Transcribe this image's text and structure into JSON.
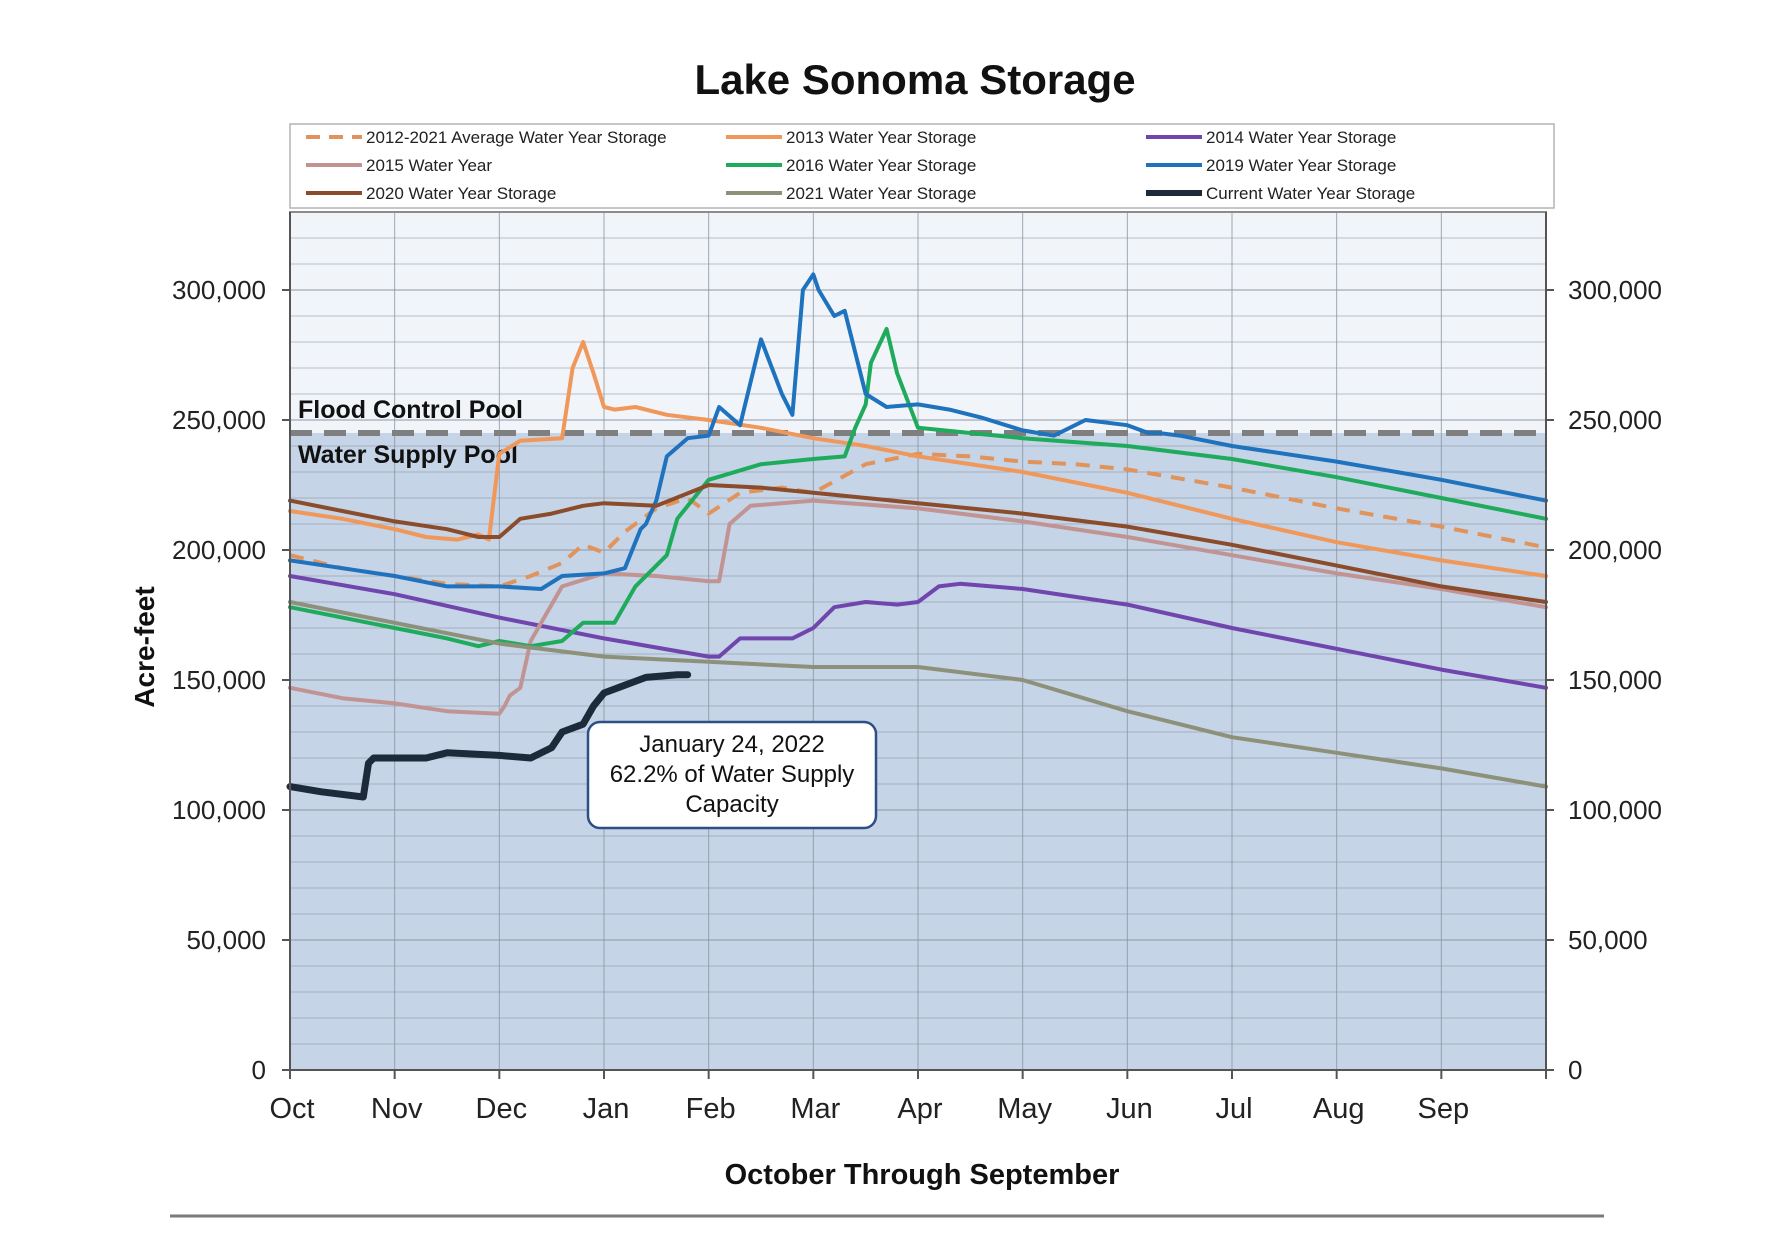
{
  "chart_data": {
    "type": "line",
    "title": "Lake Sonoma Storage",
    "xlabel": "October Through September",
    "ylabel": "Acre-feet",
    "x_unit": "month index (0 = start of Oct, 12 = end of Sep)",
    "xlim": [
      0,
      12
    ],
    "ylim": [
      0,
      330000
    ],
    "categories": [
      "Oct",
      "Nov",
      "Dec",
      "Jan",
      "Feb",
      "Mar",
      "Apr",
      "May",
      "Jun",
      "Jul",
      "Aug",
      "Sep"
    ],
    "y_ticks": [
      {
        "value": 0,
        "label": "0"
      },
      {
        "value": 50000,
        "label": "50,000"
      },
      {
        "value": 100000,
        "label": "100,000"
      },
      {
        "value": 150000,
        "label": "150,000"
      },
      {
        "value": 200000,
        "label": "200,000"
      },
      {
        "value": 250000,
        "label": "250,000"
      },
      {
        "value": 300000,
        "label": "300,000"
      }
    ],
    "grid": true,
    "legend_position": "top",
    "pool_boundary": 245000,
    "pool_labels": {
      "flood": "Flood Control Pool",
      "water": "Water Supply Pool"
    },
    "colors": {
      "flood_bg": "#f1f5f9",
      "water_bg": "#c5d4e6",
      "grid": "#8a93a3",
      "boundary": "#7f7f7f"
    },
    "series": [
      {
        "name": "2012-2021 Average Water Year Storage",
        "color": "#e0935a",
        "dashed": true,
        "width": 4,
        "x": [
          0,
          0.5,
          1,
          1.5,
          2,
          2.3,
          2.6,
          2.8,
          3.0,
          3.2,
          3.5,
          3.8,
          4.0,
          4.3,
          4.7,
          5.0,
          5.5,
          6.0,
          6.5,
          7.0,
          7.5,
          8.0,
          9.0,
          10.0,
          11.0,
          12.0
        ],
        "y": [
          198000,
          193000,
          190000,
          187000,
          186000,
          190000,
          195000,
          202000,
          199000,
          207000,
          216000,
          220000,
          214000,
          222000,
          224000,
          222000,
          233000,
          237000,
          236000,
          234000,
          233000,
          231000,
          224000,
          216000,
          209000,
          201000
        ]
      },
      {
        "name": "2013 Water Year Storage",
        "color": "#f0975a",
        "width": 4,
        "x": [
          0,
          0.5,
          1,
          1.3,
          1.6,
          1.8,
          1.9,
          2.0,
          2.2,
          2.6,
          2.7,
          2.8,
          2.9,
          3.0,
          3.1,
          3.3,
          3.6,
          4.0,
          4.5,
          5.0,
          5.5,
          6.0,
          7.0,
          8.0,
          9.0,
          10.0,
          11.0,
          12.0
        ],
        "y": [
          215000,
          212000,
          208000,
          205000,
          204000,
          206000,
          204000,
          237000,
          242000,
          243000,
          270000,
          280000,
          268000,
          255000,
          254000,
          255000,
          252000,
          250000,
          247000,
          243000,
          240000,
          236000,
          230000,
          222000,
          212000,
          203000,
          196000,
          190000
        ]
      },
      {
        "name": "2014 Water Year Storage",
        "color": "#7046ae",
        "width": 4,
        "x": [
          0,
          1,
          2,
          3,
          4,
          4.1,
          4.3,
          4.5,
          4.8,
          5.0,
          5.2,
          5.5,
          5.8,
          6.0,
          6.2,
          6.4,
          7.0,
          8.0,
          9.0,
          10.0,
          11.0,
          12.0
        ],
        "y": [
          190000,
          183000,
          174000,
          166000,
          159000,
          159000,
          166000,
          166000,
          166000,
          170000,
          178000,
          180000,
          179000,
          180000,
          186000,
          187000,
          185000,
          179000,
          170000,
          162000,
          154000,
          147000
        ]
      },
      {
        "name": "2015 Water Year",
        "color": "#c29393",
        "width": 4,
        "x": [
          0,
          0.5,
          1,
          1.5,
          2,
          2.05,
          2.1,
          2.2,
          2.3,
          2.6,
          3.0,
          3.5,
          4.0,
          4.1,
          4.2,
          4.4,
          5.0,
          6.0,
          7.0,
          8.0,
          9.0,
          10.0,
          11.0,
          12.0
        ],
        "y": [
          147000,
          143000,
          141000,
          138000,
          137000,
          140000,
          144000,
          147000,
          165000,
          186000,
          191000,
          190000,
          188000,
          188000,
          210000,
          217000,
          219000,
          216000,
          211000,
          205000,
          198000,
          191000,
          185000,
          178000
        ]
      },
      {
        "name": "2016 Water Year Storage",
        "color": "#1eab5c",
        "width": 4,
        "x": [
          0,
          0.5,
          1,
          1.5,
          1.8,
          2.0,
          2.3,
          2.6,
          2.8,
          3.0,
          3.1,
          3.3,
          3.6,
          3.7,
          3.9,
          4.0,
          4.5,
          5.0,
          5.3,
          5.4,
          5.5,
          5.55,
          5.7,
          5.8,
          6.0,
          6.5,
          7.0,
          8.0,
          9.0,
          10.0,
          11.0,
          12.0
        ],
        "y": [
          178000,
          174000,
          170000,
          166000,
          163000,
          165000,
          163000,
          165000,
          172000,
          172000,
          172000,
          186000,
          198000,
          212000,
          222000,
          227000,
          233000,
          235000,
          236000,
          247000,
          256000,
          272000,
          285000,
          268000,
          247000,
          245000,
          243000,
          240000,
          235000,
          228000,
          220000,
          212000
        ]
      },
      {
        "name": "2019 Water Year Storage",
        "color": "#1f72bd",
        "width": 4,
        "x": [
          0,
          0.5,
          1,
          1.5,
          2.0,
          2.4,
          2.6,
          3.0,
          3.2,
          3.35,
          3.4,
          3.5,
          3.6,
          3.8,
          4.0,
          4.1,
          4.3,
          4.5,
          4.7,
          4.8,
          4.9,
          5.0,
          5.05,
          5.2,
          5.3,
          5.5,
          5.7,
          6.0,
          6.3,
          6.6,
          7.0,
          7.3,
          7.6,
          8.0,
          8.2,
          8.3,
          8.5,
          9.0,
          10.0,
          11.0,
          12.0
        ],
        "y": [
          196000,
          193000,
          190000,
          186000,
          186000,
          185000,
          190000,
          191000,
          193000,
          208000,
          210000,
          219000,
          236000,
          243000,
          244000,
          255000,
          248000,
          281000,
          260000,
          252000,
          300000,
          306000,
          300000,
          290000,
          292000,
          260000,
          255000,
          256000,
          254000,
          251000,
          246000,
          244000,
          250000,
          248000,
          245000,
          245000,
          244000,
          240000,
          234000,
          227000,
          219000
        ]
      },
      {
        "name": "2020 Water Year Storage",
        "color": "#8b4c2c",
        "width": 4,
        "x": [
          0,
          0.5,
          1,
          1.5,
          1.8,
          2.0,
          2.2,
          2.5,
          2.8,
          3.0,
          3.5,
          4.0,
          4.5,
          5.0,
          6.0,
          7.0,
          8.0,
          9.0,
          10.0,
          11.0,
          12.0
        ],
        "y": [
          219000,
          215000,
          211000,
          208000,
          205000,
          205000,
          212000,
          214000,
          217000,
          218000,
          217000,
          225000,
          224000,
          222000,
          218000,
          214000,
          209000,
          202000,
          194000,
          186000,
          180000
        ]
      },
      {
        "name": "2021 Water Year Storage",
        "color": "#8e917a",
        "width": 4,
        "x": [
          0,
          1,
          2,
          3,
          4,
          5,
          6,
          7,
          8,
          9,
          10,
          11,
          12
        ],
        "y": [
          180000,
          172000,
          164000,
          159000,
          157000,
          155000,
          155000,
          150000,
          138000,
          128000,
          122000,
          116000,
          109000
        ]
      },
      {
        "name": "Current Water Year Storage",
        "color": "#1c2a3a",
        "width": 7,
        "x": [
          0,
          0.3,
          0.7,
          0.75,
          0.8,
          1.0,
          1.3,
          1.5,
          2.0,
          2.3,
          2.5,
          2.6,
          2.8,
          2.9,
          3.0,
          3.2,
          3.4,
          3.7,
          3.8
        ],
        "y": [
          109000,
          107000,
          105000,
          118000,
          120000,
          120000,
          120000,
          122000,
          121000,
          120000,
          124000,
          130000,
          133000,
          140000,
          145000,
          148000,
          151000,
          152000,
          152000
        ]
      }
    ],
    "annotation": {
      "lines": [
        "January 24, 2022",
        "62.2% of Water Supply",
        "Capacity"
      ],
      "x": 3.8,
      "y": 152000
    }
  }
}
